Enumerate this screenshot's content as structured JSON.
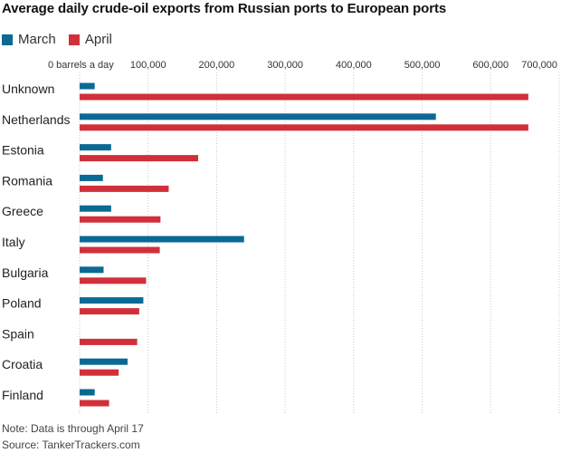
{
  "colors": {
    "march": "#0a6a94",
    "april": "#d1303b",
    "grid": "#c8c8c8"
  },
  "chart_data": {
    "type": "bar",
    "orientation": "horizontal",
    "title": "Average daily crude-oil exports from Russian ports to European ports",
    "unit_label": "0 barrels a day",
    "xlim": [
      0,
      700000
    ],
    "ticks": [
      {
        "value": 0,
        "label": "0 barrels a day"
      },
      {
        "value": 100000,
        "label": "100,000"
      },
      {
        "value": 200000,
        "label": "200,000"
      },
      {
        "value": 300000,
        "label": "300,000"
      },
      {
        "value": 400000,
        "label": "400,000"
      },
      {
        "value": 500000,
        "label": "500,000"
      },
      {
        "value": 600000,
        "label": "600,000"
      },
      {
        "value": 700000,
        "label": "700,000"
      }
    ],
    "categories": [
      "Unknown",
      "Netherlands",
      "Estonia",
      "Romania",
      "Greece",
      "Italy",
      "Bulgaria",
      "Poland",
      "Spain",
      "Croatia",
      "Finland"
    ],
    "series": [
      {
        "name": "March",
        "values": [
          22000,
          520000,
          46000,
          34000,
          46000,
          240000,
          35000,
          93000,
          0,
          70000,
          22000
        ]
      },
      {
        "name": "April",
        "values": [
          655000,
          655000,
          173000,
          130000,
          118000,
          117000,
          97000,
          87000,
          84000,
          57000,
          43000
        ]
      }
    ]
  },
  "footer": {
    "note": "Note: Data is through April 17",
    "source": "Source: TankerTrackers.com"
  }
}
